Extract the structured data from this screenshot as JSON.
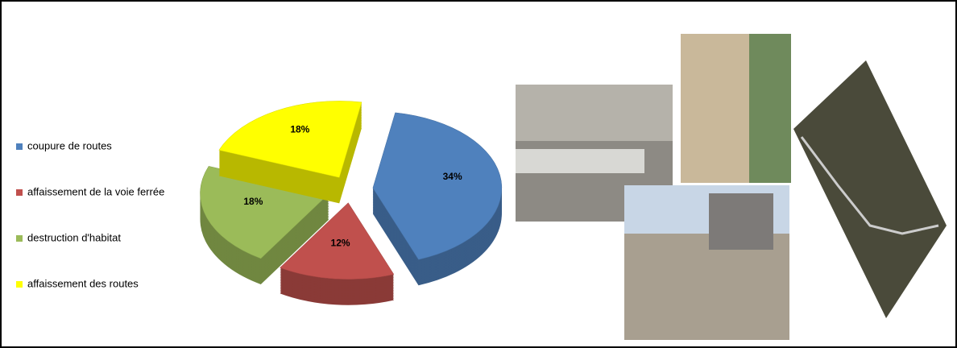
{
  "chart_data": {
    "type": "pie",
    "categories": [
      "coupure de routes",
      "affaissement de la voie ferrée",
      "destruction d'habitat",
      "affaissement des routes"
    ],
    "values": [
      34,
      12,
      18,
      18
    ],
    "value_labels": [
      "34%",
      "12%",
      "18%",
      "18%"
    ],
    "colors": [
      "#4f81bd",
      "#c0504d",
      "#9bbb59",
      "#ffff00"
    ],
    "legend": "left"
  }
}
